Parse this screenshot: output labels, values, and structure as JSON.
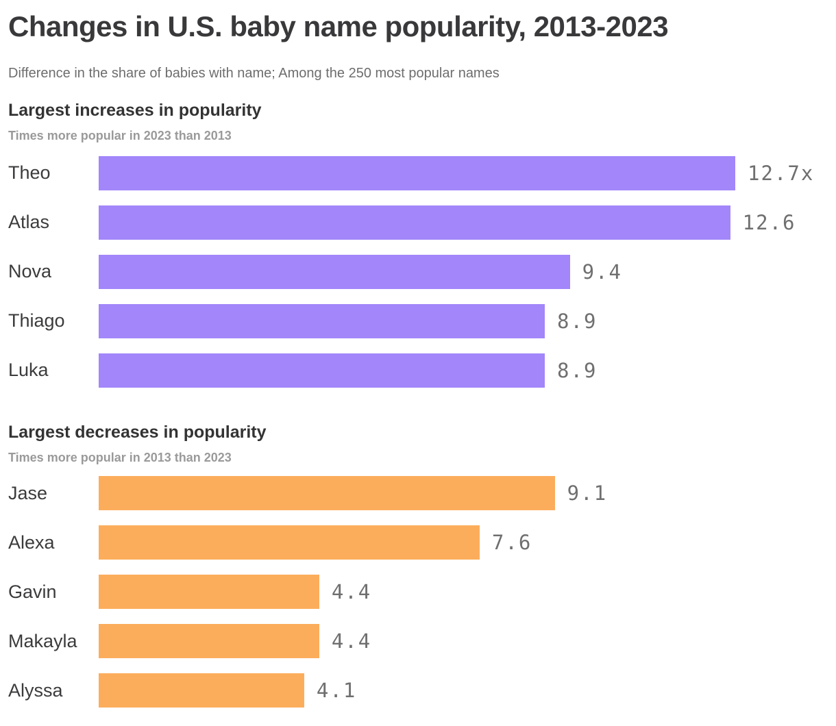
{
  "title": "Changes in U.S. baby name popularity, 2013-2023",
  "subtitle": "Difference in the share of babies with name; Among the 250 most popular names",
  "colors": {
    "increase_bar": "#a286fa",
    "decrease_bar": "#fcad5c",
    "title_text": "#39393b",
    "subtitle_text": "#6d6d6d",
    "section_sub_text": "#9a9a9a",
    "value_text": "#6f6f6f"
  },
  "chart_data": [
    {
      "type": "bar",
      "orientation": "horizontal",
      "section_title": "Largest increases in popularity",
      "section_subtitle": "Times more popular in 2023 than 2013",
      "categories": [
        "Theo",
        "Atlas",
        "Nova",
        "Thiago",
        "Luka"
      ],
      "values": [
        12.7,
        12.6,
        9.4,
        8.9,
        8.9
      ],
      "value_labels": [
        "12.7x",
        "12.6",
        "9.4",
        "8.9",
        "8.9"
      ],
      "bar_color": "#a286fa",
      "xlim": [
        0,
        12.7
      ],
      "grid": false,
      "legend": false
    },
    {
      "type": "bar",
      "orientation": "horizontal",
      "section_title": "Largest decreases in popularity",
      "section_subtitle": "Times more popular in 2013 than 2023",
      "categories": [
        "Jase",
        "Alexa",
        "Gavin",
        "Makayla",
        "Alyssa"
      ],
      "values": [
        9.1,
        7.6,
        4.4,
        4.4,
        4.1
      ],
      "value_labels": [
        "9.1",
        "7.6",
        "4.4",
        "4.4",
        "4.1"
      ],
      "bar_color": "#fcad5c",
      "xlim": [
        0,
        12.7
      ],
      "grid": false,
      "legend": false
    }
  ]
}
